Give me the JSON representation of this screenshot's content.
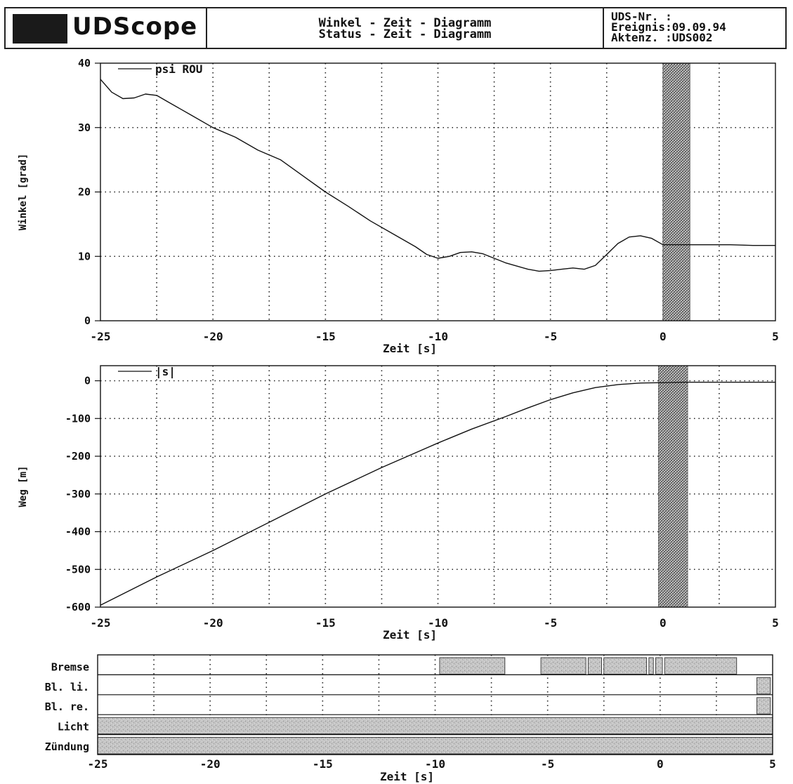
{
  "header": {
    "logo_text": "UDScope",
    "title_line1": "Winkel - Zeit - Diagramm",
    "title_line2": "Status - Zeit - Diagramm",
    "info_line1": "UDS-Nr. :",
    "info_line2": "Ereignis:09.09.94",
    "info_line3": "Aktenz. :UDS002"
  },
  "chart_data": [
    {
      "type": "line",
      "xlabel": "Zeit [s]",
      "ylabel": "Winkel [grad]",
      "xlim": [
        -25,
        5
      ],
      "ylim": [
        0,
        40
      ],
      "xticks": [
        -25,
        -20,
        -15,
        -10,
        -5,
        0,
        5
      ],
      "yticks": [
        0,
        10,
        20,
        30,
        40
      ],
      "grid": true,
      "legend": "top-left",
      "highlight_band": [
        0,
        1.2
      ],
      "series": [
        {
          "name": "psi ROU",
          "x": [
            -25,
            -24.5,
            -24,
            -23.5,
            -23,
            -22.5,
            -22,
            -21,
            -20,
            -19,
            -18,
            -17,
            -16,
            -15,
            -14,
            -13,
            -12,
            -11,
            -10.5,
            -10,
            -9.5,
            -9,
            -8.5,
            -8,
            -7,
            -6,
            -5.5,
            -5,
            -4.5,
            -4,
            -3.5,
            -3,
            -2.5,
            -2,
            -1.5,
            -1,
            -0.5,
            0,
            1,
            2,
            3,
            4,
            5
          ],
          "y": [
            37.5,
            35.5,
            34.5,
            34.6,
            35.2,
            35,
            34,
            32,
            30,
            28.5,
            26.5,
            25,
            22.5,
            20,
            17.8,
            15.5,
            13.5,
            11.5,
            10.3,
            9.7,
            10,
            10.6,
            10.7,
            10.4,
            9,
            8,
            7.7,
            7.8,
            8,
            8.2,
            8,
            8.6,
            10.3,
            12,
            13,
            13.2,
            12.8,
            11.8,
            11.8,
            11.8,
            11.8,
            11.7,
            11.7
          ]
        }
      ]
    },
    {
      "type": "line",
      "xlabel": "Zeit [s]",
      "ylabel": "Weg [m]",
      "xlim": [
        -25,
        5
      ],
      "ylim": [
        -600,
        40
      ],
      "xticks": [
        -25,
        -20,
        -15,
        -10,
        -5,
        0,
        5
      ],
      "yticks": [
        0,
        -100,
        -200,
        -300,
        -400,
        -500,
        -600
      ],
      "grid": true,
      "legend": "top-left",
      "highlight_band": [
        -0.2,
        1.1
      ],
      "series": [
        {
          "name": "|s|",
          "x": [
            -25,
            -22.5,
            -20,
            -17.5,
            -15,
            -12.5,
            -10,
            -8.5,
            -7,
            -6,
            -5,
            -4,
            -3,
            -2,
            -1,
            0,
            1,
            2,
            3,
            5
          ],
          "y": [
            -595,
            -520,
            -450,
            -375,
            -300,
            -230,
            -165,
            -128,
            -95,
            -72,
            -50,
            -32,
            -18,
            -10,
            -6,
            -5,
            -4,
            -4,
            -4,
            -4
          ]
        }
      ]
    },
    {
      "type": "timeline",
      "xlabel": "Zeit [s]",
      "xlim": [
        -25,
        5
      ],
      "xticks": [
        -25,
        -20,
        -15,
        -10,
        -5,
        0,
        5
      ],
      "rows": [
        {
          "label": "Bremse",
          "segments": [
            [
              -9.8,
              -6.9
            ],
            [
              -5.3,
              -3.3
            ],
            [
              -3.2,
              -2.6
            ],
            [
              -2.5,
              -0.6
            ],
            [
              -0.5,
              -0.3
            ],
            [
              -0.2,
              0.1
            ],
            [
              0.2,
              3.4
            ]
          ]
        },
        {
          "label": "Bl. li.",
          "segments": [
            [
              4.3,
              4.9
            ]
          ]
        },
        {
          "label": "Bl. re.",
          "segments": [
            [
              4.3,
              4.9
            ]
          ]
        },
        {
          "label": "Licht",
          "segments": [
            [
              -25,
              5
            ]
          ]
        },
        {
          "label": "Zündung",
          "segments": [
            [
              -25,
              5
            ]
          ]
        }
      ]
    }
  ]
}
